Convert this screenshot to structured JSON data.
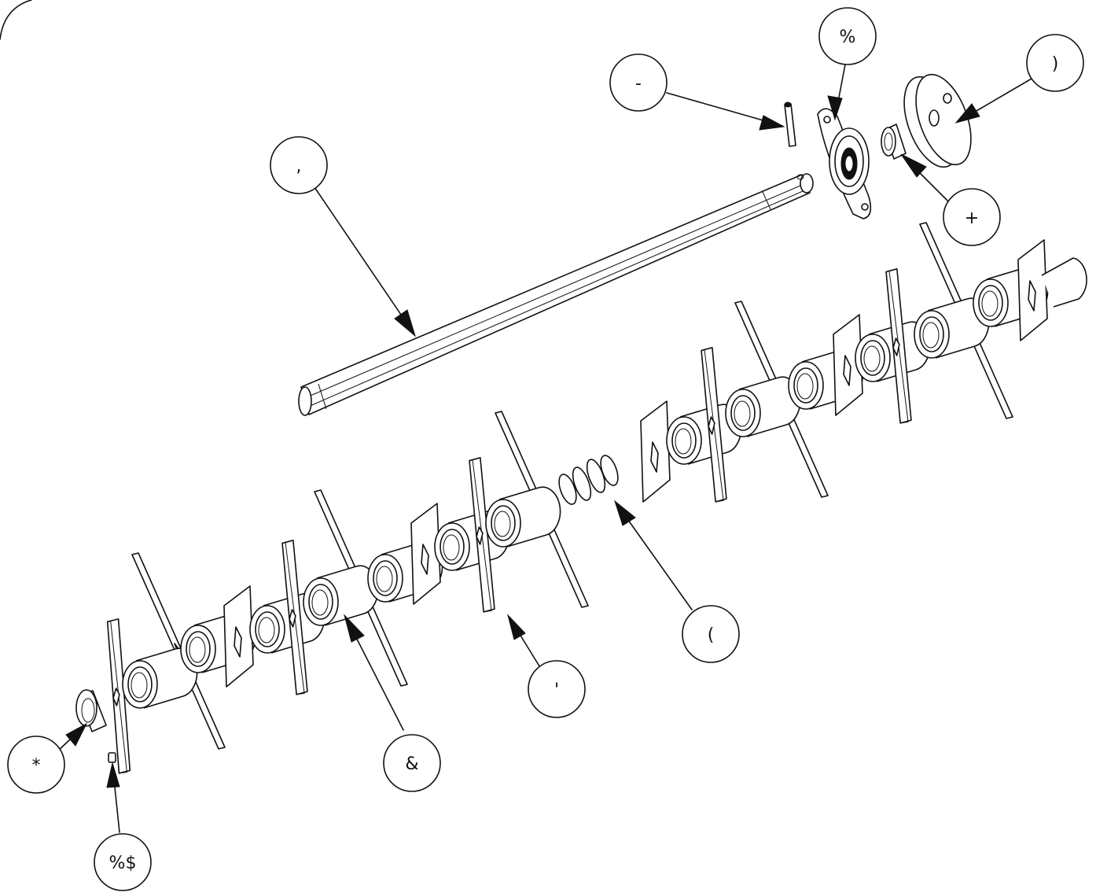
{
  "callouts": [
    {
      "id": "bearing-flange",
      "label": "%"
    },
    {
      "id": "roll-pin",
      "label": "-"
    },
    {
      "id": "pulley",
      "label": ")"
    },
    {
      "id": "shaft",
      "label": ","
    },
    {
      "id": "bushing",
      "label": "+"
    },
    {
      "id": "spring",
      "label": "("
    },
    {
      "id": "blade",
      "label": "'"
    },
    {
      "id": "spacer",
      "label": "&"
    },
    {
      "id": "end-collar",
      "label": "*"
    },
    {
      "id": "set-screw",
      "label": "%$"
    }
  ],
  "colors": {
    "line": "#111111",
    "fill": "#ffffff"
  }
}
